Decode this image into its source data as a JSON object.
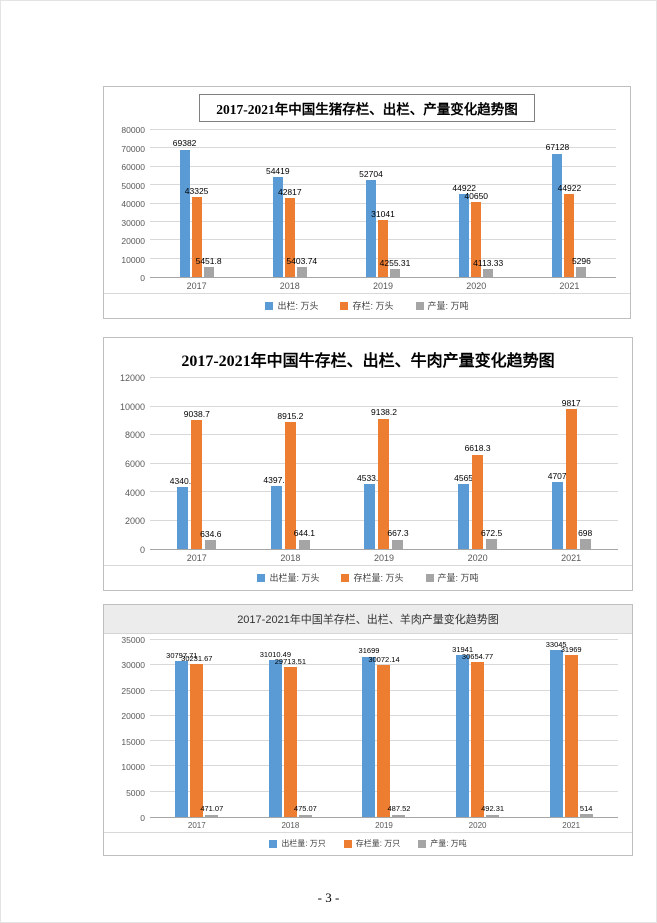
{
  "page": {
    "number_label": "- 3 -"
  },
  "colors": {
    "series": [
      "#5B9BD5",
      "#ED7D31",
      "#A5A5A5"
    ],
    "axis_text": "#595959",
    "gridline": "#D9D9D9"
  },
  "chart_data": [
    {
      "type": "bar",
      "title": "2017-2021年中国生猪存栏、出栏、产量变化趋势图",
      "categories": [
        "2017",
        "2018",
        "2019",
        "2020",
        "2021"
      ],
      "series": [
        {
          "name": "出栏: 万头",
          "values": [
            69382,
            54419,
            52704,
            44922,
            67128
          ]
        },
        {
          "name": "存栏: 万头",
          "values": [
            43325,
            42817,
            31041,
            40650,
            44922
          ]
        },
        {
          "name": "产量: 万吨",
          "values": [
            5451.8,
            5403.74,
            4255.31,
            4113.33,
            5296
          ]
        }
      ],
      "xlabel": "",
      "ylabel": "",
      "ylim": [
        0,
        80000
      ],
      "ytick": 10000,
      "grid": true,
      "legend_position": "bottom"
    },
    {
      "type": "bar",
      "title": "2017-2021年中国牛存栏、出栏、牛肉产量变化趋势图",
      "categories": [
        "2017",
        "2018",
        "2019",
        "2020",
        "2021"
      ],
      "series": [
        {
          "name": "出栏量: 万头",
          "values": [
            4340.3,
            4397.5,
            4533.9,
            4565,
            4707
          ]
        },
        {
          "name": "存栏量: 万头",
          "values": [
            9038.7,
            8915.2,
            9138.2,
            6618.3,
            9817
          ]
        },
        {
          "name": "产量: 万吨",
          "values": [
            634.6,
            644.1,
            667.3,
            672.5,
            698
          ]
        }
      ],
      "xlabel": "",
      "ylabel": "",
      "ylim": [
        0,
        12000
      ],
      "ytick": 2000,
      "grid": true,
      "legend_position": "bottom"
    },
    {
      "type": "bar",
      "title": "2017-2021年中国羊存栏、出栏、羊肉产量变化趋势图",
      "categories": [
        "2017",
        "2018",
        "2019",
        "2020",
        "2021"
      ],
      "series": [
        {
          "name": "出栏量: 万只",
          "values": [
            30797.71,
            31010.49,
            31699,
            31941,
            33045
          ]
        },
        {
          "name": "存栏量: 万只",
          "values": [
            30231.67,
            29713.51,
            30072.14,
            30654.77,
            31969
          ]
        },
        {
          "name": "产量: 万吨",
          "values": [
            471.07,
            475.07,
            487.52,
            492.31,
            514
          ]
        }
      ],
      "xlabel": "",
      "ylabel": "",
      "ylim": [
        0,
        35000
      ],
      "ytick": 5000,
      "grid": true,
      "legend_position": "bottom"
    }
  ]
}
